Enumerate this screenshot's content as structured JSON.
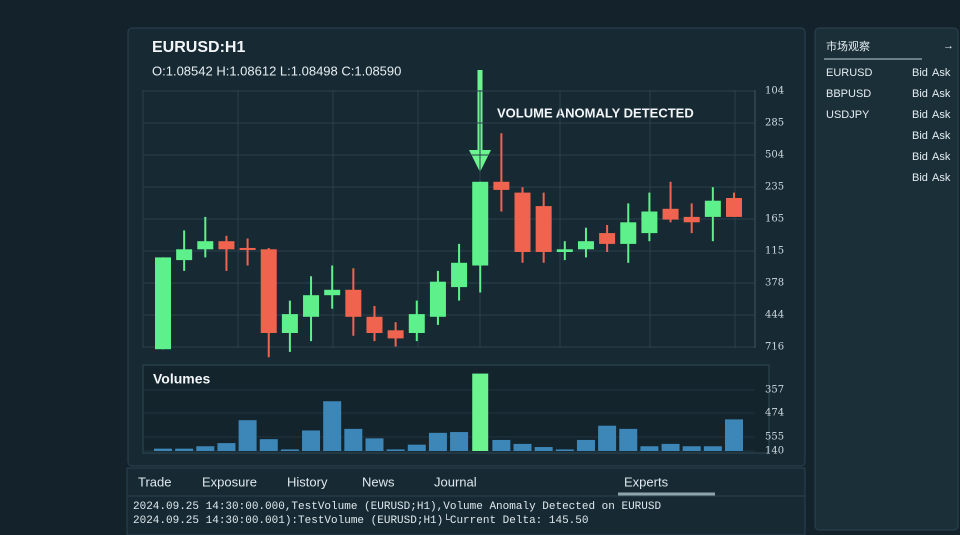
{
  "header": {
    "title": "EURUSD:H1",
    "ohlc": "O:1.08542  H:1.08612  L:1.08498  C:1.08590"
  },
  "chart": {
    "type": "candlestick",
    "annotation": "VOLUME ANOMALY DETECTED",
    "up_color": "#5ef08a",
    "down_color": "#f0644f",
    "ylim": [
      0,
      100
    ],
    "price_axis_labels": [
      "104",
      "285",
      "504",
      "235",
      "165",
      "115",
      "378",
      "444",
      "716"
    ],
    "candles": [
      {
        "open": 4,
        "high": 38,
        "low": 4,
        "close": 38
      },
      {
        "open": 37,
        "high": 48,
        "low": 33,
        "close": 41
      },
      {
        "open": 41,
        "high": 53,
        "low": 38,
        "close": 44
      },
      {
        "open": 44,
        "high": 46,
        "low": 33,
        "close": 41
      },
      {
        "open": 41.5,
        "high": 45,
        "low": 35,
        "close": 41
      },
      {
        "open": 41,
        "high": 41.5,
        "low": 1,
        "close": 10
      },
      {
        "open": 10,
        "high": 22,
        "low": 3,
        "close": 17
      },
      {
        "open": 16,
        "high": 31,
        "low": 7,
        "close": 24
      },
      {
        "open": 24,
        "high": 35,
        "low": 19,
        "close": 26
      },
      {
        "open": 26,
        "high": 34,
        "low": 9,
        "close": 16
      },
      {
        "open": 16,
        "high": 20,
        "low": 7,
        "close": 10
      },
      {
        "open": 11,
        "high": 14,
        "low": 5,
        "close": 8
      },
      {
        "open": 10,
        "high": 22,
        "low": 7,
        "close": 17
      },
      {
        "open": 16,
        "high": 33,
        "low": 13,
        "close": 29
      },
      {
        "open": 27,
        "high": 43,
        "low": 22,
        "close": 36
      },
      {
        "open": 35,
        "high": 66,
        "low": 25,
        "close": 66
      },
      {
        "open": 66,
        "high": 84,
        "low": 55,
        "close": 63
      },
      {
        "open": 62,
        "high": 64,
        "low": 36,
        "close": 40
      },
      {
        "open": 57,
        "high": 62,
        "low": 36,
        "close": 40
      },
      {
        "open": 40,
        "high": 44,
        "low": 37,
        "close": 41
      },
      {
        "open": 41,
        "high": 49,
        "low": 38,
        "close": 44
      },
      {
        "open": 47,
        "high": 50,
        "low": 40,
        "close": 43
      },
      {
        "open": 43,
        "high": 58,
        "low": 36,
        "close": 51
      },
      {
        "open": 47,
        "high": 62,
        "low": 44,
        "close": 55
      },
      {
        "open": 56,
        "high": 66,
        "low": 51,
        "close": 52
      },
      {
        "open": 53,
        "high": 58,
        "low": 47,
        "close": 51
      },
      {
        "open": 53,
        "high": 64,
        "low": 44,
        "close": 59
      },
      {
        "open": 60,
        "high": 62,
        "low": 53,
        "close": 53
      }
    ]
  },
  "volumes": {
    "title": "Volumes",
    "color": "#3d87b8",
    "highlight_color": "#6cf58f",
    "highlight_index": 15,
    "ylim": [
      0,
      100
    ],
    "axis_labels": [
      "357",
      "474",
      "555",
      "140"
    ],
    "values": [
      3,
      3,
      6,
      10,
      39,
      15,
      2,
      26,
      63,
      28,
      16,
      2,
      8,
      23,
      24,
      98,
      14,
      9,
      5,
      2,
      14,
      32,
      28,
      6,
      9,
      6,
      6,
      40
    ]
  },
  "watchlist": {
    "title": "市场观察",
    "icon": "→",
    "rows": [
      {
        "symbol": "EURUSD",
        "bid": "Bid",
        "ask": "Ask"
      },
      {
        "symbol": "BBPUSD",
        "bid": "Bid",
        "ask": "Ask"
      },
      {
        "symbol": "USDJPY",
        "bid": "Bid",
        "ask": "Ask"
      },
      {
        "bid": "Bid",
        "ask": "Ask"
      },
      {
        "bid": "Bid",
        "ask": "Ask"
      },
      {
        "bid": "Bid",
        "ask": "Ask"
      }
    ],
    "ask_colors": [
      "#5ef08a",
      "#5ef08a",
      "#5ef08a",
      "#5ef08a",
      "#f0644f",
      "#f0644f"
    ]
  },
  "terminal": {
    "tabs": [
      "Trade",
      "Exposure",
      "History",
      "News",
      "Journal",
      "Experts"
    ],
    "log": [
      "2024.09.25 14:30:00.000,TestVolume (EURUSD;H1),Volume Anomaly Detected on EURUSD",
      "2024.09.25 14:30:00.001):TestVolume (EURUSD;H1)└Current Delta: 145.50"
    ]
  }
}
